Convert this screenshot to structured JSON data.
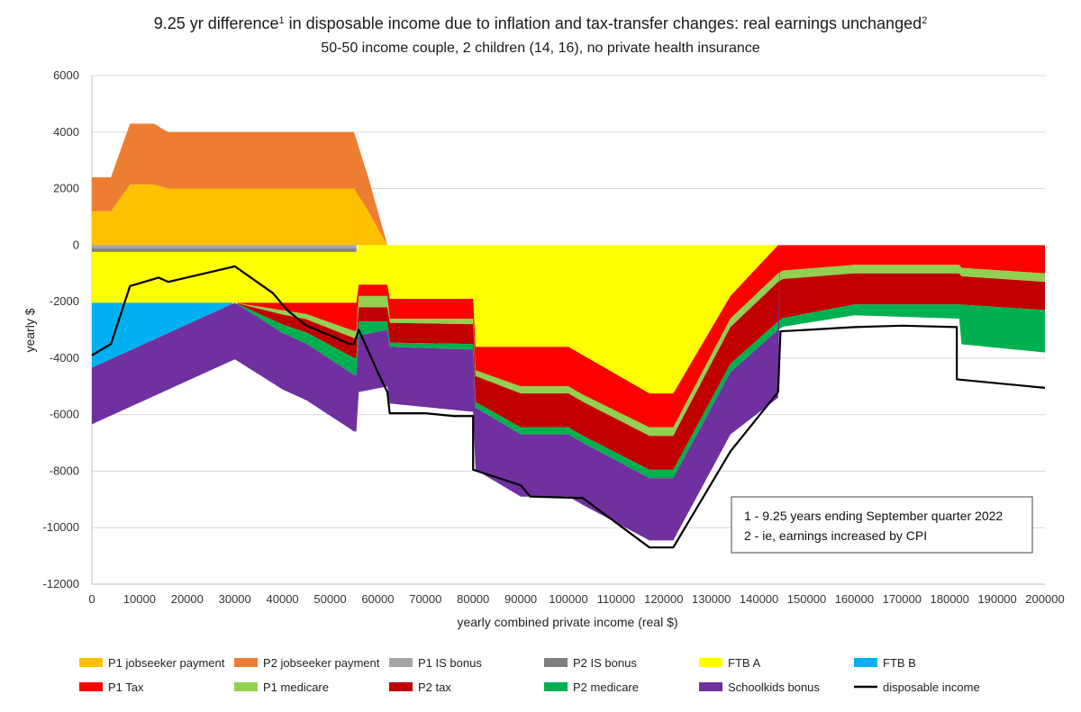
{
  "chart_data": {
    "type": "area",
    "title": {
      "main": "9.25 yr difference",
      "sup1": "1",
      "mid": " in disposable income due to inflation and tax-transfer changes: real earnings unchanged",
      "sup2": "2"
    },
    "subtitle": "50-50 income couple, 2 children (14, 16), no private health insurance",
    "xlabel": "yearly combined private income (real $)",
    "ylabel": "yearly $",
    "xlim": [
      0,
      200000
    ],
    "ylim": [
      -12000,
      6000
    ],
    "x_ticks": [
      0,
      10000,
      20000,
      30000,
      40000,
      50000,
      60000,
      70000,
      80000,
      90000,
      100000,
      110000,
      120000,
      130000,
      140000,
      150000,
      160000,
      170000,
      180000,
      190000,
      200000
    ],
    "y_ticks": [
      6000,
      4000,
      2000,
      0,
      -2000,
      -4000,
      -6000,
      -8000,
      -10000,
      -12000
    ],
    "grid": "horizontal",
    "legend_position": "bottom",
    "notes": [
      "1 - 9.25 years ending September quarter 2022",
      "2 - ie, earnings increased by CPI"
    ],
    "stacking": "positive series stack upward from 0; negative series stack downward from 0 in listed order",
    "series": [
      {
        "name": "P1 jobseeker payment",
        "color": "#FFC000",
        "points": [
          [
            0,
            1200
          ],
          [
            4000,
            1200
          ],
          [
            8000,
            2150
          ],
          [
            13000,
            2150
          ],
          [
            16000,
            2000
          ],
          [
            30000,
            2000
          ],
          [
            55000,
            2000
          ],
          [
            58000,
            1200
          ],
          [
            62000,
            0
          ]
        ]
      },
      {
        "name": "P2 jobseeker payment",
        "color": "#ED7D31",
        "points": [
          [
            0,
            1200
          ],
          [
            4000,
            1200
          ],
          [
            8000,
            2150
          ],
          [
            13000,
            2150
          ],
          [
            16000,
            2000
          ],
          [
            30000,
            2000
          ],
          [
            55000,
            2000
          ],
          [
            58000,
            1200
          ],
          [
            62000,
            0
          ]
        ]
      },
      {
        "name": "P1 IS bonus",
        "color": "#A5A5A5",
        "points": [
          [
            0,
            -120
          ],
          [
            55500,
            -120
          ],
          [
            55500,
            0
          ],
          [
            200000,
            0
          ]
        ]
      },
      {
        "name": "P2 IS bonus",
        "color": "#7F7F7F",
        "points": [
          [
            0,
            -120
          ],
          [
            55500,
            -120
          ],
          [
            55500,
            0
          ],
          [
            200000,
            0
          ]
        ]
      },
      {
        "name": "FTB A",
        "color": "#FFFF00",
        "points": [
          [
            0,
            -1800
          ],
          [
            55500,
            -1800
          ],
          [
            55500,
            -1400
          ],
          [
            62000,
            -1400
          ],
          [
            62500,
            -1900
          ],
          [
            80000,
            -1900
          ],
          [
            80000,
            -3600
          ],
          [
            100000,
            -3600
          ],
          [
            117000,
            -5250
          ],
          [
            122000,
            -5250
          ],
          [
            134000,
            -1800
          ],
          [
            144000,
            0
          ],
          [
            200000,
            0
          ]
        ]
      },
      {
        "name": "FTB B",
        "color": "#00B0F0",
        "points": [
          [
            0,
            -2300
          ],
          [
            30000,
            0
          ],
          [
            200000,
            0
          ]
        ]
      },
      {
        "name": "P1 Tax",
        "color": "#FF0000",
        "points": [
          [
            0,
            0
          ],
          [
            30000,
            0
          ],
          [
            45000,
            -400
          ],
          [
            55000,
            -1000
          ],
          [
            55500,
            -1000
          ],
          [
            56000,
            -400
          ],
          [
            62000,
            -400
          ],
          [
            62500,
            -700
          ],
          [
            80000,
            -700
          ],
          [
            80000,
            -800
          ],
          [
            90000,
            -1400
          ],
          [
            92000,
            -1400
          ],
          [
            103000,
            -1400
          ],
          [
            117000,
            -1200
          ],
          [
            122000,
            -1200
          ],
          [
            134000,
            -800
          ],
          [
            144000,
            -1000
          ],
          [
            145000,
            -900
          ],
          [
            160000,
            -700
          ],
          [
            182000,
            -700
          ],
          [
            182000,
            -800
          ],
          [
            200000,
            -1000
          ]
        ]
      },
      {
        "name": "P1 medicare",
        "color": "#92D050",
        "points": [
          [
            0,
            0
          ],
          [
            30000,
            0
          ],
          [
            40000,
            -150
          ],
          [
            55000,
            -250
          ],
          [
            55500,
            -250
          ],
          [
            56000,
            -400
          ],
          [
            62000,
            -400
          ],
          [
            62500,
            -150
          ],
          [
            80000,
            -200
          ],
          [
            90000,
            -250
          ],
          [
            103000,
            -250
          ],
          [
            117000,
            -300
          ],
          [
            122000,
            -300
          ],
          [
            144000,
            -300
          ],
          [
            200000,
            -300
          ]
        ]
      },
      {
        "name": "P2 tax",
        "color": "#C00000",
        "points": [
          [
            0,
            0
          ],
          [
            30000,
            0
          ],
          [
            40000,
            -350
          ],
          [
            55000,
            -700
          ],
          [
            55500,
            -700
          ],
          [
            56000,
            -500
          ],
          [
            62000,
            -500
          ],
          [
            62500,
            -700
          ],
          [
            80000,
            -700
          ],
          [
            80000,
            -900
          ],
          [
            90000,
            -1200
          ],
          [
            92000,
            -1200
          ],
          [
            103000,
            -1200
          ],
          [
            117000,
            -1200
          ],
          [
            122000,
            -1200
          ],
          [
            134000,
            -1300
          ],
          [
            144000,
            -1400
          ],
          [
            160000,
            -1100
          ],
          [
            182000,
            -1100
          ],
          [
            182000,
            -1000
          ],
          [
            200000,
            -1000
          ]
        ]
      },
      {
        "name": "P2 medicare",
        "color": "#00B050",
        "points": [
          [
            0,
            0
          ],
          [
            30000,
            0
          ],
          [
            40000,
            -300
          ],
          [
            55000,
            -600
          ],
          [
            55500,
            -600
          ],
          [
            56000,
            -500
          ],
          [
            62000,
            -300
          ],
          [
            62500,
            -150
          ],
          [
            80000,
            -200
          ],
          [
            90000,
            -250
          ],
          [
            103000,
            -250
          ],
          [
            117000,
            -300
          ],
          [
            122000,
            -300
          ],
          [
            144000,
            -300
          ],
          [
            182000,
            -500
          ],
          [
            182000,
            -1400
          ],
          [
            200000,
            -1500
          ]
        ]
      },
      {
        "name": "Schoolkids bonus",
        "color": "#7030A0",
        "points": [
          [
            0,
            -2000
          ],
          [
            10000,
            -2000
          ],
          [
            30000,
            -2000
          ],
          [
            40000,
            -2000
          ],
          [
            55000,
            -2000
          ],
          [
            55500,
            -2000
          ],
          [
            62000,
            -2000
          ],
          [
            80000,
            -2200
          ],
          [
            90000,
            -2200
          ],
          [
            117000,
            -2200
          ],
          [
            122000,
            -2200
          ],
          [
            134000,
            -2200
          ],
          [
            144000,
            -2400
          ],
          [
            144500,
            0
          ],
          [
            200000,
            0
          ]
        ]
      }
    ],
    "line_series": {
      "name": "disposable income",
      "color": "#000000",
      "points": [
        [
          0,
          -3900
        ],
        [
          4000,
          -3500
        ],
        [
          8000,
          -1450
        ],
        [
          14000,
          -1150
        ],
        [
          16000,
          -1300
        ],
        [
          30000,
          -750
        ],
        [
          38000,
          -1700
        ],
        [
          41000,
          -2300
        ],
        [
          45000,
          -2850
        ],
        [
          50000,
          -3200
        ],
        [
          54000,
          -3500
        ],
        [
          55000,
          -3500
        ],
        [
          56000,
          -3000
        ],
        [
          60000,
          -4500
        ],
        [
          62000,
          -5200
        ],
        [
          62500,
          -5950
        ],
        [
          70000,
          -5950
        ],
        [
          76000,
          -6050
        ],
        [
          80000,
          -6050
        ],
        [
          80000,
          -7950
        ],
        [
          90000,
          -8500
        ],
        [
          92000,
          -8900
        ],
        [
          103000,
          -8950
        ],
        [
          117000,
          -10700
        ],
        [
          122000,
          -10700
        ],
        [
          134000,
          -7300
        ],
        [
          144000,
          -5200
        ],
        [
          144500,
          -3050
        ],
        [
          150000,
          -3000
        ],
        [
          160000,
          -2900
        ],
        [
          170000,
          -2850
        ],
        [
          181500,
          -2900
        ],
        [
          181500,
          -4750
        ],
        [
          200000,
          -5050
        ]
      ]
    },
    "legend_items": [
      {
        "label": "P1 jobseeker payment",
        "color": "#FFC000",
        "kind": "area"
      },
      {
        "label": "P2 jobseeker payment",
        "color": "#ED7D31",
        "kind": "area"
      },
      {
        "label": "P1 IS bonus",
        "color": "#A5A5A5",
        "kind": "area"
      },
      {
        "label": "P2 IS bonus",
        "color": "#7F7F7F",
        "kind": "area"
      },
      {
        "label": "FTB A",
        "color": "#FFFF00",
        "kind": "area"
      },
      {
        "label": "FTB B",
        "color": "#00B0F0",
        "kind": "area"
      },
      {
        "label": "P1 Tax",
        "color": "#FF0000",
        "kind": "area"
      },
      {
        "label": "P1 medicare",
        "color": "#92D050",
        "kind": "area"
      },
      {
        "label": "P2 tax",
        "color": "#C00000",
        "kind": "area"
      },
      {
        "label": "P2 medicare",
        "color": "#00B050",
        "kind": "area"
      },
      {
        "label": "Schoolkids bonus",
        "color": "#7030A0",
        "kind": "area"
      },
      {
        "label": "disposable income",
        "color": "#000000",
        "kind": "line"
      }
    ]
  }
}
